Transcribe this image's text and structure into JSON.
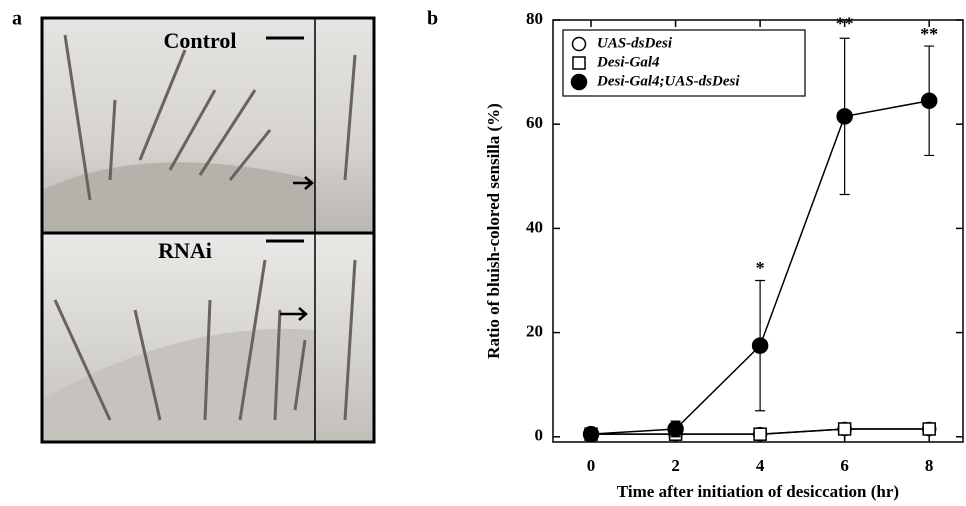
{
  "panel_a": {
    "label": "a",
    "top_label": "Control",
    "bottom_label": "RNAi"
  },
  "panel_b": {
    "label": "b"
  },
  "chart_data": {
    "type": "line",
    "x_label": "Time after initiation of desiccation (hr)",
    "y_label": "Ratio of bluish-colored sensilla (%)",
    "x": [
      0,
      2,
      4,
      6,
      8
    ],
    "series": [
      {
        "name": "UAS-dsDesi",
        "color": "#000000",
        "marker": "circle-open",
        "values": [
          0.5,
          0.5,
          0.5,
          1.5,
          1.5
        ]
      },
      {
        "name": "Desi-Gal4",
        "color": "#000000",
        "marker": "square-open",
        "values": [
          0.5,
          0.5,
          0.5,
          1.5,
          1.5
        ]
      },
      {
        "name": "Desi-Gal4;UAS-dsDesi",
        "color": "#000000",
        "marker": "circle-filled",
        "values": [
          0.5,
          1.5,
          17.5,
          61.5,
          64.5
        ],
        "errors": [
          0.5,
          1.5,
          12.5,
          15,
          10.5
        ]
      }
    ],
    "annotations": [
      {
        "x": 4,
        "y": 32,
        "text": "*"
      },
      {
        "x": 6,
        "y": 79,
        "text": "**"
      },
      {
        "x": 8,
        "y": 77,
        "text": "**"
      }
    ],
    "xlim": [
      -0.9,
      8.8
    ],
    "ylim": [
      -1,
      80
    ],
    "xticks": [
      0,
      2,
      4,
      6,
      8
    ],
    "yticks": [
      0,
      20,
      40,
      60,
      80
    ],
    "legend": "top-left"
  }
}
